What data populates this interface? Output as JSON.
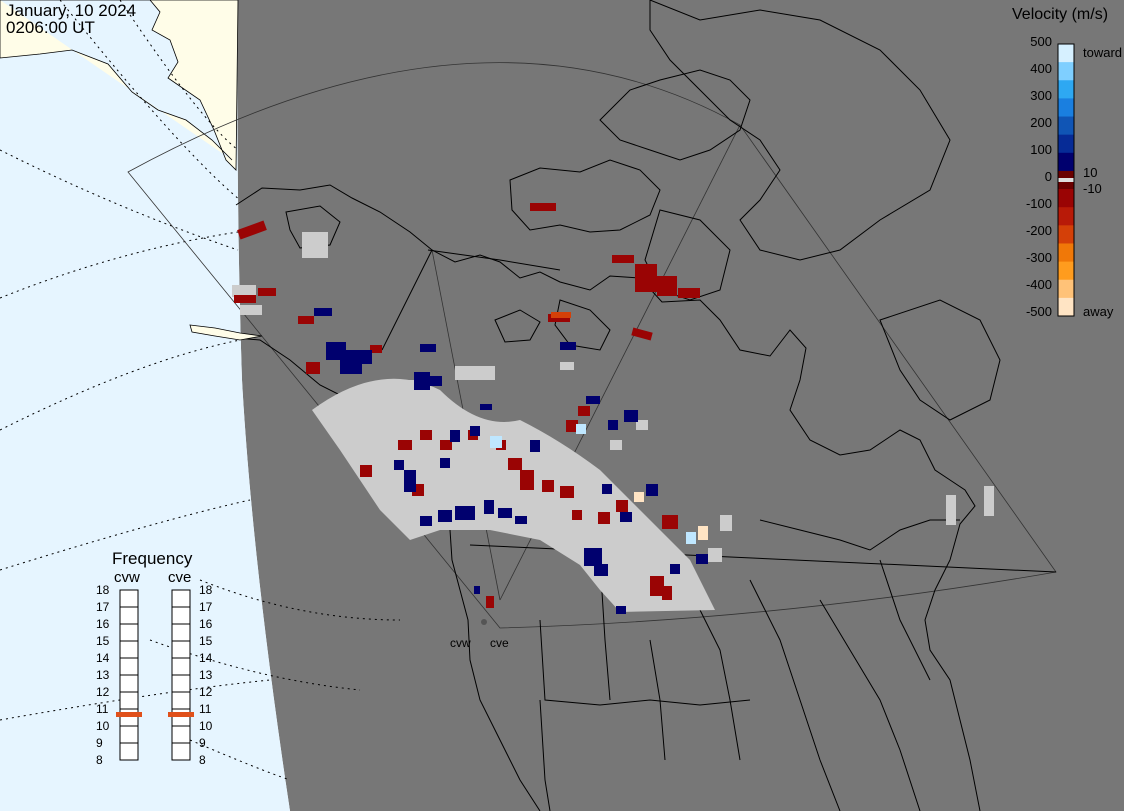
{
  "header": {
    "date": "January, 10 2024",
    "time": "0206:00 UT"
  },
  "colorbar": {
    "title": "Velocity (m/s)",
    "ticks": [
      "500",
      "400",
      "300",
      "200",
      "100",
      "0",
      "-100",
      "-200",
      "-300",
      "-400",
      "-500"
    ],
    "label_toward": "toward",
    "label_away": "away",
    "label_pos10": "10",
    "label_neg10": "-10",
    "colors": [
      "#d6f0ff",
      "#7fcfff",
      "#2ea8f2",
      "#1a7fe0",
      "#1055b5",
      "#062b96",
      "#00006e",
      "#6a0000",
      "#9a0404",
      "#b81a08",
      "#d44008",
      "#f07808",
      "#ff9c1e",
      "#ffc278",
      "#ffe4c4"
    ]
  },
  "frequency": {
    "title": "Frequency",
    "radars": [
      {
        "name": "cvw",
        "mhz": 11
      },
      {
        "name": "cve",
        "mhz": 11
      }
    ],
    "ticks": [
      "18",
      "17",
      "16",
      "15",
      "14",
      "13",
      "12",
      "11",
      "10",
      "9",
      "8"
    ]
  },
  "radar_sites": [
    "cvw",
    "cve"
  ],
  "map_colors": {
    "land": "#777777",
    "ocean_day": "#e6f5ff",
    "land_day": "#fffde8",
    "ground_scatter": "#cccccc"
  }
}
